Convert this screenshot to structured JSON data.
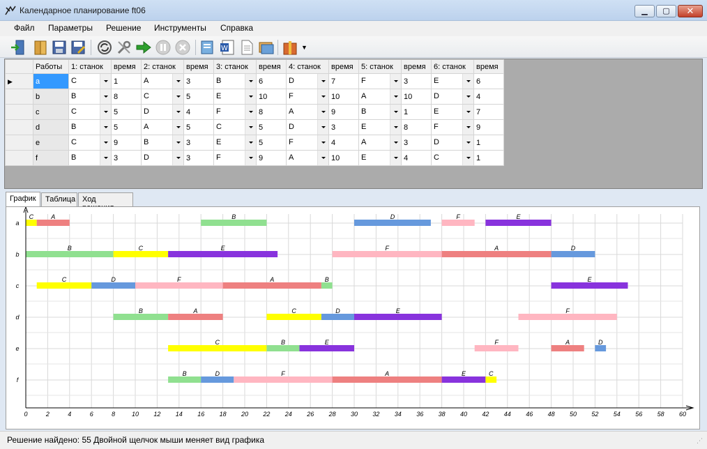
{
  "window": {
    "title": "Календарное планирование ft06"
  },
  "menu": [
    "Файл",
    "Параметры",
    "Решение",
    "Инструменты",
    "Справка"
  ],
  "toolbar": {
    "icons": [
      "exit-icon",
      "open-icon",
      "save-icon",
      "save-as-icon",
      "refresh-icon",
      "tools-icon",
      "run-icon",
      "pause-icon",
      "stop-icon",
      "report-icon",
      "word-icon",
      "document-icon",
      "image-icon",
      "package-icon",
      "dropdown-arrow-icon"
    ]
  },
  "grid": {
    "headers": [
      "Работы",
      "1: станок",
      "время",
      "2: станок",
      "время",
      "3: станок",
      "время",
      "4: станок",
      "время",
      "5: станок",
      "время",
      "6: станок",
      "время"
    ],
    "rows": [
      {
        "name": "a",
        "cells": [
          [
            "C",
            "1"
          ],
          [
            "A",
            "3"
          ],
          [
            "B",
            "6"
          ],
          [
            "D",
            "7"
          ],
          [
            "F",
            "3"
          ],
          [
            "E",
            "6"
          ]
        ]
      },
      {
        "name": "b",
        "cells": [
          [
            "B",
            "8"
          ],
          [
            "C",
            "5"
          ],
          [
            "E",
            "10"
          ],
          [
            "F",
            "10"
          ],
          [
            "A",
            "10"
          ],
          [
            "D",
            "4"
          ]
        ]
      },
      {
        "name": "c",
        "cells": [
          [
            "C",
            "5"
          ],
          [
            "D",
            "4"
          ],
          [
            "F",
            "8"
          ],
          [
            "A",
            "9"
          ],
          [
            "B",
            "1"
          ],
          [
            "E",
            "7"
          ]
        ]
      },
      {
        "name": "d",
        "cells": [
          [
            "B",
            "5"
          ],
          [
            "A",
            "5"
          ],
          [
            "C",
            "5"
          ],
          [
            "D",
            "3"
          ],
          [
            "E",
            "8"
          ],
          [
            "F",
            "9"
          ]
        ]
      },
      {
        "name": "e",
        "cells": [
          [
            "C",
            "9"
          ],
          [
            "B",
            "3"
          ],
          [
            "E",
            "5"
          ],
          [
            "F",
            "4"
          ],
          [
            "A",
            "3"
          ],
          [
            "D",
            "1"
          ]
        ]
      },
      {
        "name": "f",
        "cells": [
          [
            "B",
            "3"
          ],
          [
            "D",
            "3"
          ],
          [
            "F",
            "9"
          ],
          [
            "A",
            "10"
          ],
          [
            "E",
            "4"
          ],
          [
            "C",
            "1"
          ]
        ]
      }
    ]
  },
  "tabs": [
    "График",
    "Таблица",
    "Ход решения"
  ],
  "chart_data": {
    "type": "gantt",
    "xlim": [
      0,
      60
    ],
    "x_ticks": [
      0,
      2,
      4,
      6,
      8,
      10,
      12,
      14,
      16,
      18,
      20,
      22,
      24,
      26,
      28,
      30,
      32,
      34,
      36,
      38,
      40,
      42,
      44,
      46,
      48,
      50,
      52,
      54,
      56,
      58,
      60
    ],
    "rows": [
      "a",
      "b",
      "c",
      "d",
      "e",
      "f"
    ],
    "colors": {
      "A": "#ee8080",
      "B": "#90e090",
      "C": "#ffff00",
      "D": "#6699dd",
      "E": "#8833dd",
      "F": "#ffb6c1"
    },
    "bars": [
      {
        "row": "a",
        "machine": "C",
        "start": 0,
        "end": 1
      },
      {
        "row": "a",
        "machine": "A",
        "start": 1,
        "end": 4
      },
      {
        "row": "a",
        "machine": "B",
        "start": 16,
        "end": 22
      },
      {
        "row": "a",
        "machine": "D",
        "start": 30,
        "end": 37
      },
      {
        "row": "a",
        "machine": "F",
        "start": 38,
        "end": 41
      },
      {
        "row": "a",
        "machine": "E",
        "start": 42,
        "end": 48
      },
      {
        "row": "b",
        "machine": "B",
        "start": 0,
        "end": 8
      },
      {
        "row": "b",
        "machine": "C",
        "start": 8,
        "end": 13
      },
      {
        "row": "b",
        "machine": "E",
        "start": 13,
        "end": 23
      },
      {
        "row": "b",
        "machine": "F",
        "start": 28,
        "end": 38
      },
      {
        "row": "b",
        "machine": "A",
        "start": 38,
        "end": 48
      },
      {
        "row": "b",
        "machine": "D",
        "start": 48,
        "end": 52
      },
      {
        "row": "c",
        "machine": "C",
        "start": 1,
        "end": 6
      },
      {
        "row": "c",
        "machine": "D",
        "start": 6,
        "end": 10
      },
      {
        "row": "c",
        "machine": "F",
        "start": 10,
        "end": 18
      },
      {
        "row": "c",
        "machine": "A",
        "start": 18,
        "end": 27
      },
      {
        "row": "c",
        "machine": "B",
        "start": 27,
        "end": 28
      },
      {
        "row": "c",
        "machine": "E",
        "start": 48,
        "end": 55
      },
      {
        "row": "d",
        "machine": "B",
        "start": 8,
        "end": 13
      },
      {
        "row": "d",
        "machine": "A",
        "start": 13,
        "end": 18
      },
      {
        "row": "d",
        "machine": "C",
        "start": 22,
        "end": 27
      },
      {
        "row": "d",
        "machine": "D",
        "start": 27,
        "end": 30
      },
      {
        "row": "d",
        "machine": "E",
        "start": 30,
        "end": 38
      },
      {
        "row": "d",
        "machine": "F",
        "start": 45,
        "end": 54
      },
      {
        "row": "e",
        "machine": "C",
        "start": 13,
        "end": 22
      },
      {
        "row": "e",
        "machine": "B",
        "start": 22,
        "end": 25
      },
      {
        "row": "e",
        "machine": "E",
        "start": 25,
        "end": 30
      },
      {
        "row": "e",
        "machine": "F",
        "start": 41,
        "end": 45
      },
      {
        "row": "e",
        "machine": "A",
        "start": 48,
        "end": 51
      },
      {
        "row": "e",
        "machine": "D",
        "start": 52,
        "end": 53
      },
      {
        "row": "f",
        "machine": "B",
        "start": 13,
        "end": 16
      },
      {
        "row": "f",
        "machine": "D",
        "start": 16,
        "end": 19
      },
      {
        "row": "f",
        "machine": "F",
        "start": 19,
        "end": 28
      },
      {
        "row": "f",
        "machine": "A",
        "start": 28,
        "end": 38
      },
      {
        "row": "f",
        "machine": "E",
        "start": 38,
        "end": 42
      },
      {
        "row": "f",
        "machine": "C",
        "start": 42,
        "end": 43
      }
    ]
  },
  "status": {
    "text": "Решение найдено: 55  Двойной щелчок мыши меняет вид графика"
  }
}
